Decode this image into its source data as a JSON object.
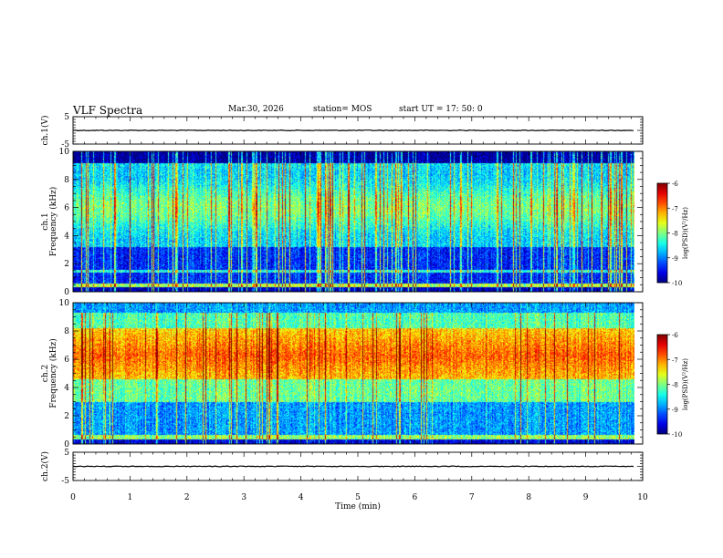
{
  "header": {
    "title": "VLF Spectra",
    "date": "Mar.30, 2026",
    "station": "station= MOS",
    "start": "start UT =  17: 50: 0"
  },
  "chart_data": [
    {
      "type": "line",
      "panel": "ch1-waveform",
      "ylabel": "ch.1(V)",
      "ylim": [
        -5,
        5
      ],
      "yticks": [
        "5",
        "-5"
      ],
      "x": [
        0,
        10
      ],
      "values": [
        0,
        0
      ]
    },
    {
      "type": "heatmap",
      "panel": "ch1-spectrogram",
      "ylabel_line1": "ch.1",
      "ylabel_line2": "Frequency (kHz)",
      "ylim": [
        0,
        10
      ],
      "yticks": [
        "0",
        "2",
        "4",
        "6",
        "8",
        "10"
      ],
      "colorbar": {
        "label": "log(PSD)(V²/Hz)",
        "range": [
          -10,
          -6
        ],
        "ticks": [
          "-6",
          "-7",
          "-8",
          "-9",
          "-10"
        ]
      }
    },
    {
      "type": "heatmap",
      "panel": "ch2-spectrogram",
      "ylabel_line1": "ch.2",
      "ylabel_line2": "Frequency (kHz)",
      "ylim": [
        0,
        10
      ],
      "yticks": [
        "0",
        "2",
        "4",
        "6",
        "8",
        "10"
      ],
      "colorbar": {
        "label": "log(PSD)(V²/Hz)",
        "range": [
          -10,
          -6
        ],
        "ticks": [
          "-6",
          "-7",
          "-8",
          "-9",
          "-10"
        ]
      }
    },
    {
      "type": "line",
      "panel": "ch2-waveform",
      "ylabel": "ch.2(V)",
      "ylim": [
        -5,
        5
      ],
      "yticks": [
        "5",
        "-5"
      ],
      "x": [
        0,
        10
      ],
      "values": [
        0,
        0
      ]
    }
  ],
  "xaxis": {
    "label": "Time (min)",
    "range": [
      0,
      10
    ],
    "ticks": [
      "0",
      "1",
      "2",
      "3",
      "4",
      "5",
      "6",
      "7",
      "8",
      "9",
      "10"
    ]
  },
  "data_end_min": 9.85
}
